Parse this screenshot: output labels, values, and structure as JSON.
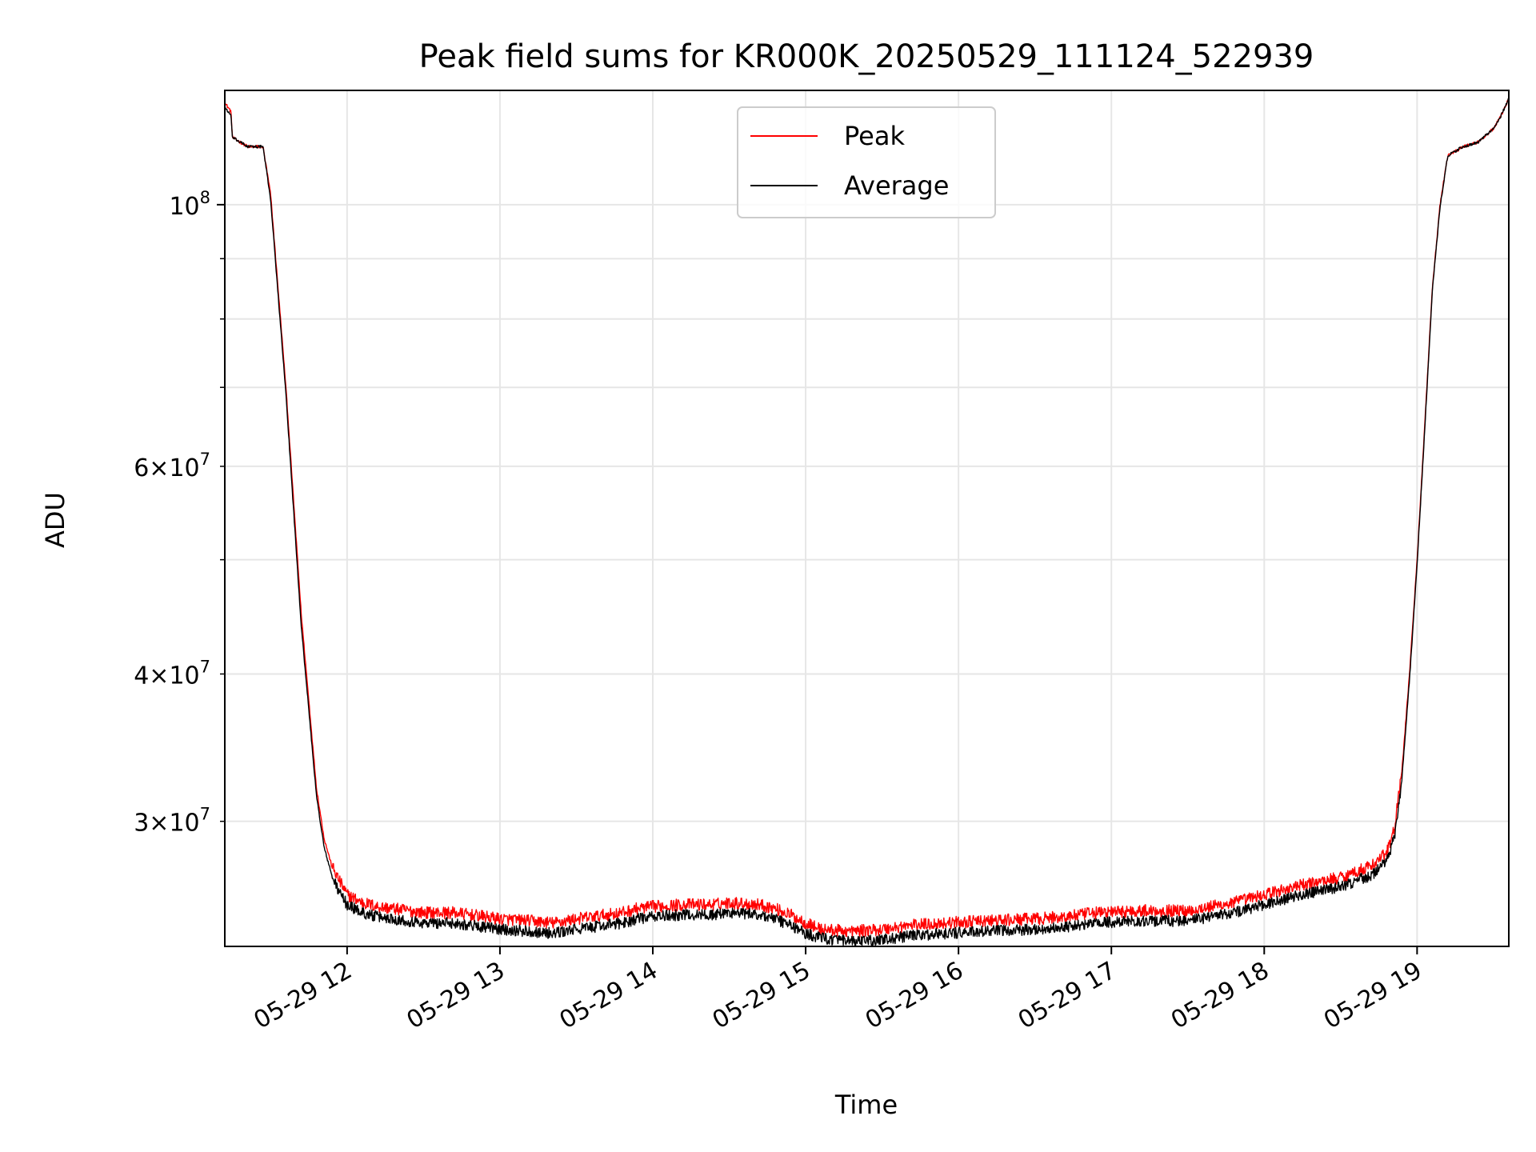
{
  "chart_data": {
    "type": "line",
    "title": "Peak field sums for KR000K_20250529_111124_522939",
    "xlabel": "Time",
    "ylabel": "ADU",
    "yscale": "log",
    "grid": true,
    "legend_placement": "top-center",
    "xlim_hours": [
      11.2,
      19.6
    ],
    "ylim": [
      23500000,
      125000000
    ],
    "x_ticks": [
      {
        "value": 12,
        "label": "05-29 12"
      },
      {
        "value": 13,
        "label": "05-29 13"
      },
      {
        "value": 14,
        "label": "05-29 14"
      },
      {
        "value": 15,
        "label": "05-29 15"
      },
      {
        "value": 16,
        "label": "05-29 16"
      },
      {
        "value": 17,
        "label": "05-29 17"
      },
      {
        "value": 18,
        "label": "05-29 18"
      },
      {
        "value": 19,
        "label": "05-29 19"
      }
    ],
    "y_ticks_major": [
      {
        "value": 100000000,
        "base": "10",
        "exp": "8",
        "label": "10^8"
      }
    ],
    "y_ticks_minor": [
      {
        "value": 30000000,
        "mant": "3",
        "base": "10",
        "exp": "7",
        "label": "3×10^7"
      },
      {
        "value": 40000000,
        "mant": "4",
        "base": "10",
        "exp": "7",
        "label": "4×10^7"
      },
      {
        "value": 60000000,
        "mant": "6",
        "base": "10",
        "exp": "7",
        "label": "6×10^7"
      }
    ],
    "y_minor_unlabeled": [
      50000000,
      70000000,
      80000000,
      90000000
    ],
    "series": [
      {
        "name": "Peak",
        "color": "#ff0000",
        "noise": 0.012,
        "x": [
          11.2,
          11.24,
          11.25,
          11.35,
          11.45,
          11.5,
          11.6,
          11.7,
          11.8,
          11.85,
          11.9,
          11.95,
          12.0,
          12.1,
          12.2,
          12.3,
          12.5,
          12.7,
          13.0,
          13.2,
          13.35,
          13.5,
          13.8,
          13.9,
          14.0,
          14.2,
          14.4,
          14.5,
          14.7,
          14.8,
          14.9,
          15.0,
          15.1,
          15.3,
          15.5,
          15.7,
          15.9,
          16.2,
          16.5,
          16.7,
          16.9,
          17.2,
          17.5,
          17.8,
          18.0,
          18.2,
          18.5,
          18.7,
          18.8,
          18.85,
          18.9,
          18.95,
          19.0,
          19.05,
          19.1,
          19.15,
          19.2,
          19.3,
          19.4,
          19.5,
          19.55,
          19.6
        ],
        "y": [
          122000000,
          120000000,
          114000000,
          112000000,
          112000000,
          102000000,
          70000000,
          45000000,
          32000000,
          29000000,
          27500000,
          26700000,
          26000000,
          25600000,
          25400000,
          25300000,
          25100000,
          25100000,
          24800000,
          24700000,
          24600000,
          24800000,
          25100000,
          25300000,
          25400000,
          25500000,
          25500000,
          25600000,
          25500000,
          25300000,
          25000000,
          24600000,
          24300000,
          24200000,
          24300000,
          24500000,
          24600000,
          24700000,
          24800000,
          24900000,
          25100000,
          25200000,
          25200000,
          25600000,
          26000000,
          26400000,
          26900000,
          27500000,
          28200000,
          29500000,
          33000000,
          40000000,
          50000000,
          65000000,
          85000000,
          100000000,
          110000000,
          112000000,
          113000000,
          116000000,
          119000000,
          123000000
        ]
      },
      {
        "name": "Average",
        "color": "#000000",
        "noise": 0.011,
        "x": [
          11.2,
          11.24,
          11.25,
          11.35,
          11.45,
          11.5,
          11.6,
          11.7,
          11.8,
          11.85,
          11.9,
          11.95,
          12.0,
          12.1,
          12.2,
          12.3,
          12.5,
          12.7,
          13.0,
          13.2,
          13.35,
          13.5,
          13.8,
          13.9,
          14.0,
          14.2,
          14.4,
          14.5,
          14.7,
          14.8,
          14.9,
          15.0,
          15.1,
          15.3,
          15.5,
          15.7,
          15.9,
          16.2,
          16.5,
          16.7,
          16.9,
          17.2,
          17.5,
          17.8,
          18.0,
          18.2,
          18.5,
          18.7,
          18.8,
          18.85,
          18.9,
          18.95,
          19.0,
          19.05,
          19.1,
          19.15,
          19.2,
          19.3,
          19.4,
          19.5,
          19.55,
          19.6
        ],
        "y": [
          121000000,
          119000000,
          114000000,
          112000000,
          112000000,
          101000000,
          69000000,
          44000000,
          31500000,
          28500000,
          27000000,
          26100000,
          25500000,
          25100000,
          24900000,
          24800000,
          24600000,
          24600000,
          24300000,
          24200000,
          24100000,
          24300000,
          24600000,
          24800000,
          24900000,
          25000000,
          25000000,
          25100000,
          25000000,
          24800000,
          24500000,
          24100000,
          23900000,
          23700000,
          23800000,
          24000000,
          24100000,
          24200000,
          24300000,
          24400000,
          24600000,
          24700000,
          24700000,
          25100000,
          25500000,
          25900000,
          26400000,
          27000000,
          27700000,
          29000000,
          32500000,
          39500000,
          49500000,
          64500000,
          84500000,
          99500000,
          110000000,
          112000000,
          113000000,
          116000000,
          119000000,
          123000000
        ]
      }
    ]
  }
}
